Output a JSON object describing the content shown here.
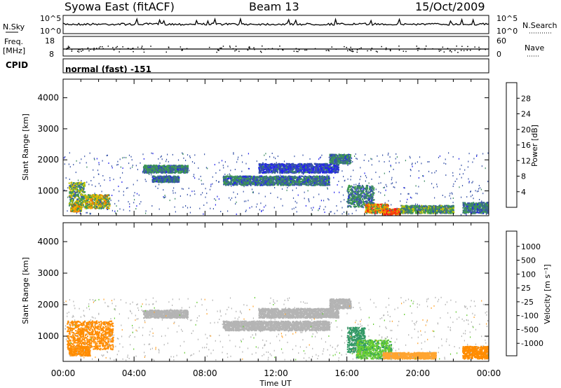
{
  "header": {
    "station": "Syowa East (fitACF)",
    "beam": "Beam 13",
    "date": "15/Oct/2009"
  },
  "strips": {
    "nsky_label": "N.Sky",
    "nsky_top": "10^5",
    "nsky_bottom": "10^0",
    "nsearch_label": "N.Search",
    "nsearch_top": "10^5",
    "nsearch_bottom": "10^0",
    "freq_label": "Freq.",
    "freq_unit": "[MHz]",
    "freq_top": "18",
    "freq_bottom": "8",
    "nave_label": "Nave",
    "nave_top": "60",
    "nave_bottom": "0",
    "cpid_label": "CPID",
    "cpid_value": "normal (fast) -151"
  },
  "colors": {
    "power_scale": [
      "#1a1aff",
      "#2222ee",
      "#3a55a8",
      "#3a8a60",
      "#3fa04a",
      "#c4c400",
      "#f2b400",
      "#f08a00",
      "#f05a00",
      "#ff1a1a"
    ],
    "velocity_scale": [
      "#ff0000",
      "#ff5a00",
      "#ff8c00",
      "#ffa530",
      "#b4b4b4",
      "#b4b4b4",
      "#66cc33",
      "#339966",
      "#3366aa",
      "#2222cc"
    ]
  },
  "chart_data": [
    {
      "type": "heatmap",
      "name": "power",
      "ylabel": "Slant Range [km]",
      "xlabel": "Time UT",
      "x_ticks": [
        "00:00",
        "04:00",
        "08:00",
        "12:00",
        "16:00",
        "20:00",
        "00:00"
      ],
      "y_ticks": [
        1000,
        2000,
        3000,
        4000
      ],
      "ylim": [
        200,
        4600
      ],
      "colorbar_label": "Power [dB]",
      "colorbar_ticks": [
        4,
        8,
        12,
        16,
        20,
        24,
        28
      ],
      "colorbar_range": [
        0,
        32
      ],
      "bands": [
        {
          "t0": 0.3,
          "t1": 1.2,
          "r0": 500,
          "r1": 1300,
          "v": 14
        },
        {
          "t0": 1.2,
          "t1": 2.6,
          "r0": 450,
          "r1": 900,
          "v": 18
        },
        {
          "t0": 0.4,
          "t1": 1.0,
          "r0": 350,
          "r1": 600,
          "v": 20
        },
        {
          "t0": 4.5,
          "t1": 7.0,
          "r0": 1600,
          "r1": 1850,
          "v": 11
        },
        {
          "t0": 5.0,
          "t1": 6.5,
          "r0": 1300,
          "r1": 1500,
          "v": 9
        },
        {
          "t0": 9.0,
          "t1": 15.0,
          "r0": 1200,
          "r1": 1500,
          "v": 10
        },
        {
          "t0": 11.0,
          "t1": 15.5,
          "r0": 1600,
          "r1": 1900,
          "v": 7
        },
        {
          "t0": 15.0,
          "t1": 16.2,
          "r0": 1900,
          "r1": 2200,
          "v": 10
        },
        {
          "t0": 16.0,
          "t1": 17.5,
          "r0": 500,
          "r1": 1200,
          "v": 11
        },
        {
          "t0": 17.0,
          "t1": 18.3,
          "r0": 300,
          "r1": 600,
          "v": 22
        },
        {
          "t0": 18.0,
          "t1": 19.0,
          "r0": 250,
          "r1": 450,
          "v": 27
        },
        {
          "t0": 19.0,
          "t1": 22.0,
          "r0": 300,
          "r1": 550,
          "v": 13
        },
        {
          "t0": 22.5,
          "t1": 24.0,
          "r0": 300,
          "r1": 650,
          "v": 10
        }
      ]
    },
    {
      "type": "heatmap",
      "name": "velocity",
      "ylabel": "Slant Range [km]",
      "xlabel": "Time UT",
      "x_ticks": [
        "00:00",
        "04:00",
        "08:00",
        "12:00",
        "16:00",
        "20:00",
        "00:00"
      ],
      "y_ticks": [
        1000,
        2000,
        3000,
        4000
      ],
      "ylim": [
        200,
        4600
      ],
      "colorbar_label": "Velocity [m s⁻¹]",
      "colorbar_ticks": [
        "1000",
        "500",
        "100",
        "25",
        "-25",
        "-100",
        "-500",
        "-1000"
      ],
      "bands": [
        {
          "t0": 0.2,
          "t1": 2.8,
          "r0": 600,
          "r1": 1500,
          "v": -300
        },
        {
          "t0": 0.3,
          "t1": 1.5,
          "r0": 400,
          "r1": 700,
          "v": -150
        },
        {
          "t0": 4.5,
          "t1": 7.0,
          "r0": 1600,
          "r1": 1850,
          "v": 0
        },
        {
          "t0": 9.0,
          "t1": 15.0,
          "r0": 1200,
          "r1": 1500,
          "v": 0
        },
        {
          "t0": 11.0,
          "t1": 15.5,
          "r0": 1600,
          "r1": 1900,
          "v": 0
        },
        {
          "t0": 15.0,
          "t1": 16.2,
          "r0": 1900,
          "r1": 2200,
          "v": 10
        },
        {
          "t0": 16.0,
          "t1": 17.0,
          "r0": 500,
          "r1": 1300,
          "v": 300
        },
        {
          "t0": 16.5,
          "t1": 18.5,
          "r0": 300,
          "r1": 900,
          "v": 80
        },
        {
          "t0": 18.0,
          "t1": 21.0,
          "r0": 300,
          "r1": 500,
          "v": -60
        },
        {
          "t0": 22.5,
          "t1": 24.0,
          "r0": 300,
          "r1": 700,
          "v": -200
        }
      ]
    }
  ]
}
